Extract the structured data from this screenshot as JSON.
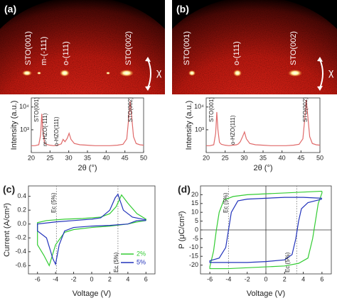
{
  "diffraction_images": [
    {
      "panel_label": "(a)",
      "labels": [
        "STO(001)",
        "m-(-111)",
        "o-(111)",
        "STO(002)"
      ],
      "axis_label": "χ"
    },
    {
      "panel_label": "(b)",
      "labels": [
        "STO(001)",
        "o-(111)",
        "STO(002)"
      ],
      "axis_label": "χ"
    }
  ],
  "chart_data": [
    {
      "type": "line",
      "xlabel": "2θ (°)",
      "ylabel": "Intensity (a.u.)",
      "log_y": true,
      "xlim": [
        20,
        50
      ],
      "xticks": [
        20,
        25,
        30,
        35,
        40,
        45,
        50
      ],
      "ylim": [
        100,
        25000
      ],
      "yticks": [
        {
          "value": 1000,
          "label": "10³"
        },
        {
          "value": 10000,
          "label": "10⁴"
        }
      ],
      "annotations": [
        "STO(001)",
        "m-HZO(-111)",
        "o-HZO(111)",
        "STO(002)"
      ],
      "series": [
        {
          "color": "#e06a6a",
          "x": [
            20,
            21,
            22,
            22.5,
            22.8,
            23.1,
            23.5,
            24,
            25,
            26,
            27,
            28,
            28.5,
            29,
            29.6,
            30.1,
            30.6,
            31.5,
            33,
            35,
            37,
            39,
            41,
            43,
            44.5,
            45.5,
            46,
            46.4,
            46.8,
            47.3,
            48,
            49,
            50
          ],
          "values": [
            200,
            200,
            220,
            600,
            5000,
            900,
            280,
            230,
            210,
            200,
            210,
            240,
            380,
            300,
            420,
            700,
            380,
            250,
            220,
            210,
            200,
            200,
            200,
            210,
            230,
            400,
            3000,
            18000,
            4000,
            500,
            250,
            220,
            210
          ]
        }
      ]
    },
    {
      "type": "line",
      "xlabel": "2θ (°)",
      "ylabel": "Intensity (a.u.)",
      "log_y": true,
      "xlim": [
        20,
        50
      ],
      "xticks": [
        20,
        25,
        30,
        35,
        40,
        45,
        50
      ],
      "ylim": [
        100,
        25000
      ],
      "yticks": [
        {
          "value": 1000,
          "label": "10³"
        },
        {
          "value": 10000,
          "label": "10⁴"
        }
      ],
      "annotations": [
        "STO(001)",
        "o-HZO(111)",
        "STO(002)"
      ],
      "series": [
        {
          "color": "#e06a6a",
          "x": [
            20,
            21,
            22,
            22.5,
            22.8,
            23.1,
            23.5,
            24,
            25,
            26,
            27,
            28,
            28.5,
            29,
            29.6,
            30.1,
            30.6,
            31.5,
            33,
            35,
            37,
            39,
            41,
            43,
            44.5,
            45.5,
            46,
            46.4,
            46.8,
            47.3,
            48,
            49,
            50
          ],
          "values": [
            200,
            200,
            220,
            700,
            6000,
            1000,
            280,
            230,
            210,
            200,
            210,
            220,
            240,
            300,
            500,
            800,
            400,
            250,
            220,
            210,
            200,
            200,
            200,
            210,
            230,
            400,
            3000,
            20000,
            4000,
            500,
            250,
            220,
            210
          ]
        }
      ]
    },
    {
      "type": "line",
      "panel_label": "(c)",
      "xlabel": "Voltage (V)",
      "ylabel": "Current (A/cm²)",
      "xlim": [
        -7,
        7
      ],
      "xticks": [
        -6,
        -4,
        -2,
        0,
        2,
        4,
        6
      ],
      "ylim": [
        -0.72,
        0.55
      ],
      "yticks": [
        -0.6,
        -0.4,
        -0.2,
        {
          "value": 0,
          "label": "0.0"
        },
        0.2,
        0.4
      ],
      "vlines": [
        -3.9,
        2.9
      ],
      "annotations": [
        "Ec (5%)",
        "Ec (5%)"
      ],
      "legend": "lower right",
      "series": [
        {
          "name": "2%",
          "color": "#33cc33",
          "x": [
            6,
            5,
            4,
            2,
            0,
            -2,
            -3,
            -4,
            -4.7,
            -5.3,
            -6,
            -6,
            -5,
            -3,
            -1,
            1,
            2,
            2.7,
            3.3,
            4,
            5,
            6,
            6
          ],
          "values": [
            0.05,
            0.03,
            0.0,
            -0.03,
            -0.05,
            -0.08,
            -0.12,
            -0.3,
            -0.6,
            -0.45,
            -0.3,
            0.02,
            0.05,
            0.07,
            0.08,
            0.1,
            0.15,
            0.25,
            0.42,
            0.3,
            0.15,
            0.07,
            0.05
          ]
        },
        {
          "name": "5%",
          "color": "#2233bb",
          "x": [
            6,
            5,
            4,
            2,
            0,
            -2,
            -3,
            -3.6,
            -4,
            -4.3,
            -5,
            -6,
            -6,
            -4,
            -2,
            0,
            1,
            2,
            2.6,
            2.9,
            3.5,
            4.5,
            6
          ],
          "values": [
            0.05,
            0.05,
            0.0,
            -0.02,
            -0.03,
            -0.05,
            -0.1,
            -0.3,
            -0.58,
            -0.5,
            -0.2,
            -0.1,
            0.0,
            0.03,
            0.05,
            0.07,
            0.09,
            0.2,
            0.38,
            0.43,
            0.2,
            0.1,
            0.06
          ]
        }
      ]
    },
    {
      "type": "line",
      "panel_label": "(d)",
      "xlabel": "Voltage (V)",
      "ylabel": "P (μC/cm²)",
      "xlim": [
        -7,
        7
      ],
      "xticks": [
        -6,
        -4,
        -2,
        0,
        2,
        4,
        6
      ],
      "ylim": [
        -25,
        25
      ],
      "yticks": [
        -20,
        -15,
        -10,
        -5,
        0,
        5,
        10,
        15,
        20
      ],
      "vlines": [
        -4,
        3.3
      ],
      "annotations": [
        "Ec (5%)",
        "Ec (5%)"
      ],
      "zero_lines": true,
      "series": [
        {
          "color": "#33cc33",
          "x": [
            6,
            4,
            2,
            0,
            -2,
            -3.5,
            -4.5,
            -5,
            -5.3,
            -5.6,
            -6,
            -6,
            -4,
            -2,
            0,
            2,
            3.5,
            4.5,
            5,
            5.3,
            5.6,
            6,
            6
          ],
          "values": [
            22,
            21.5,
            21,
            20.5,
            20,
            19,
            17,
            10,
            0,
            -12,
            -21,
            -22,
            -22,
            -21.5,
            -21,
            -20.5,
            -19,
            -16,
            -5,
            5,
            15,
            21,
            22
          ]
        },
        {
          "color": "#2233bb",
          "x": [
            6,
            4,
            2,
            0,
            -2,
            -3,
            -3.7,
            -4,
            -4.3,
            -5,
            -6,
            -6,
            -4,
            -2,
            0,
            2,
            2.8,
            3.2,
            3.5,
            3.8,
            4.5,
            6
          ],
          "values": [
            18,
            18.5,
            18.5,
            18,
            17.5,
            16.5,
            10,
            0,
            -10,
            -16,
            -17.5,
            -18.5,
            -18.5,
            -18.5,
            -18,
            -17,
            -14,
            -5,
            5,
            12,
            15.5,
            17.5
          ]
        }
      ]
    }
  ]
}
